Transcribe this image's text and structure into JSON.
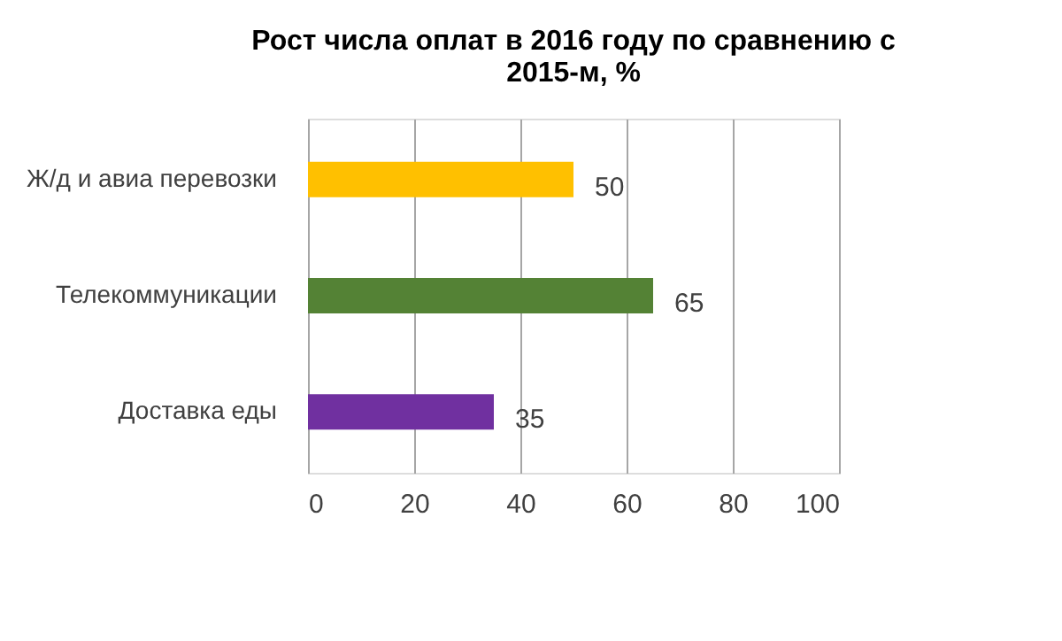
{
  "chart_data": {
    "type": "bar",
    "orientation": "horizontal",
    "title": "Рост числа оплат в 2016 году по сравнению с 2015-м, %",
    "categories": [
      "Ж/д  и авиа перевозки",
      "Телекоммуникации",
      "Доставка еды"
    ],
    "values": [
      50,
      65,
      35
    ],
    "colors": [
      "#ffc000",
      "#548235",
      "#7030a0"
    ],
    "xlim": [
      0,
      100
    ],
    "xticks": [
      0,
      20,
      40,
      60,
      80,
      100
    ],
    "grid": "x",
    "data_labels": true
  }
}
